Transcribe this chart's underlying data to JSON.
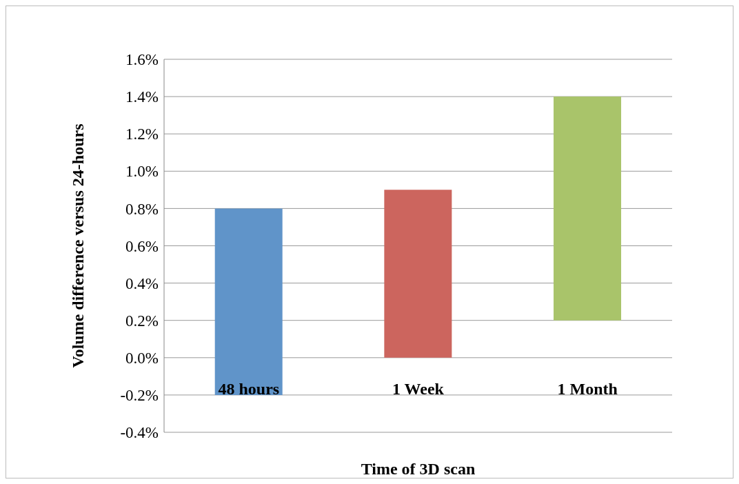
{
  "chart_data": {
    "type": "bar",
    "xlabel": "Time of 3D scan",
    "ylabel": "Volume difference versus 24-hours",
    "categories": [
      "48 hours",
      "1 Week",
      "1 Month"
    ],
    "base": [
      -0.2,
      0,
      0.2
    ],
    "values": [
      1.0,
      0.9,
      1.2
    ],
    "colors": [
      "#6094c9",
      "#cc655e",
      "#a9c46a"
    ],
    "ylim": [
      -0.4,
      1.6
    ],
    "yticks": [
      {
        "value": -0.4,
        "label": "-0.4%"
      },
      {
        "value": -0.2,
        "label": "-0.2%"
      },
      {
        "value": 0,
        "label": "0.0%"
      },
      {
        "value": 0.2,
        "label": "0.2%"
      },
      {
        "value": 0.4,
        "label": "0.4%"
      },
      {
        "value": 0.6,
        "label": "0.6%"
      },
      {
        "value": 0.8,
        "label": "0.8%"
      },
      {
        "value": 1.0,
        "label": "1.0%"
      },
      {
        "value": 1.2,
        "label": "1.2%"
      },
      {
        "value": 1.4,
        "label": "1.4%"
      },
      {
        "value": 1.6,
        "label": "1.6%"
      }
    ],
    "grid": "y",
    "legend": false
  }
}
